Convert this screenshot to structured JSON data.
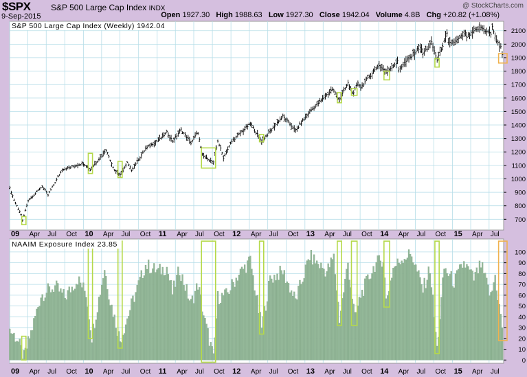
{
  "header": {
    "symbol": "$SPX",
    "name": "S&P 500 Large Cap Index",
    "exchange": "INDX",
    "date": "9-Sep-2015",
    "watermark": "@ StockCharts.com",
    "open_label": "Open",
    "open": "1927.30",
    "high_label": "High",
    "high": "1988.63",
    "low_label": "Low",
    "low": "1927.30",
    "close_label": "Close",
    "close": "1942.04",
    "volume_label": "Volume",
    "volume": "4.8B",
    "chg_label": "Chg",
    "chg": "+20.82 (+1.08%)"
  },
  "colors": {
    "frame": "#d5bfdf",
    "panel_bg": "#ffffff",
    "grid": "#b6dde8",
    "price": "#000000",
    "histogram": "#94b899",
    "histogram_edge": "#6f9574",
    "green_box": "#b5d94a",
    "orange_box": "#f0b24f"
  },
  "chart_data": [
    {
      "type": "line",
      "title": "S&P 500 Large Cap Index (Weekly) 1942.04",
      "xlabel": "",
      "ylabel": "",
      "ylim": [
        620,
        2170
      ],
      "yticks": [
        700,
        800,
        900,
        1000,
        1100,
        1200,
        1300,
        1400,
        1500,
        1600,
        1700,
        1800,
        1900,
        2000,
        2100
      ],
      "grid": true,
      "x_tick_labels": [
        "09",
        "Apr",
        "Jul",
        "Oct",
        "10",
        "Apr",
        "Jul",
        "Oct",
        "11",
        "Apr",
        "Jul",
        "Oct",
        "12",
        "Apr",
        "Jul",
        "Oct",
        "13",
        "Apr",
        "Jul",
        "Oct",
        "14",
        "Apr",
        "Jul",
        "Oct",
        "15",
        "Apr",
        "Jul"
      ],
      "bold_x_labels": [
        "09",
        "10",
        "11",
        "12",
        "13",
        "14",
        "15"
      ],
      "x_start": "2009-01-01",
      "x_end": "2015-09-11",
      "series": [
        {
          "name": "",
          "keypoints": [
            [
              "2009-01-02",
              930
            ],
            [
              "2009-01-23",
              840
            ],
            [
              "2009-02-27",
              735
            ],
            [
              "2009-03-06",
              690
            ],
            [
              "2009-04-03",
              840
            ],
            [
              "2009-06-12",
              945
            ],
            [
              "2009-07-10",
              880
            ],
            [
              "2009-09-18",
              1070
            ],
            [
              "2009-12-31",
              1115
            ],
            [
              "2010-02-05",
              1070
            ],
            [
              "2010-04-23",
              1215
            ],
            [
              "2010-06-04",
              1065
            ],
            [
              "2010-07-02",
              1025
            ],
            [
              "2010-08-06",
              1120
            ],
            [
              "2010-08-27",
              1065
            ],
            [
              "2010-11-05",
              1225
            ],
            [
              "2011-01-14",
              1295
            ],
            [
              "2011-02-18",
              1345
            ],
            [
              "2011-03-18",
              1280
            ],
            [
              "2011-04-29",
              1365
            ],
            [
              "2011-06-17",
              1270
            ],
            [
              "2011-07-22",
              1345
            ],
            [
              "2011-08-12",
              1175
            ],
            [
              "2011-10-07",
              1120
            ],
            [
              "2011-10-28",
              1285
            ],
            [
              "2011-11-25",
              1160
            ],
            [
              "2012-01-06",
              1280
            ],
            [
              "2012-04-06",
              1410
            ],
            [
              "2012-06-01",
              1280
            ],
            [
              "2012-09-14",
              1465
            ],
            [
              "2012-11-16",
              1360
            ],
            [
              "2013-01-25",
              1500
            ],
            [
              "2013-05-17",
              1665
            ],
            [
              "2013-06-21",
              1590
            ],
            [
              "2013-08-02",
              1710
            ],
            [
              "2013-08-30",
              1630
            ],
            [
              "2013-09-20",
              1715
            ],
            [
              "2013-10-04",
              1680
            ],
            [
              "2013-12-31",
              1845
            ],
            [
              "2014-02-07",
              1795
            ],
            [
              "2014-04-04",
              1870
            ],
            [
              "2014-04-11",
              1815
            ],
            [
              "2014-07-25",
              1980
            ],
            [
              "2014-08-08",
              1930
            ],
            [
              "2014-09-19",
              2010
            ],
            [
              "2014-10-17",
              1885
            ],
            [
              "2014-12-05",
              2075
            ],
            [
              "2014-12-12",
              2005
            ],
            [
              "2015-01-16",
              2020
            ],
            [
              "2015-03-06",
              2080
            ],
            [
              "2015-03-13",
              2055
            ],
            [
              "2015-05-22",
              2125
            ],
            [
              "2015-07-10",
              2075
            ],
            [
              "2015-07-17",
              2125
            ],
            [
              "2015-08-21",
              1975
            ],
            [
              "2015-08-28",
              1990
            ],
            [
              "2015-09-04",
              1925
            ],
            [
              "2015-09-09",
              1942
            ]
          ]
        }
      ],
      "annotation_boxes": [
        {
          "color": "green",
          "from": "2009-03-02",
          "to": "2009-03-23",
          "low": 660,
          "high": 720
        },
        {
          "color": "green",
          "from": "2010-01-25",
          "to": "2010-02-15",
          "low": 1040,
          "high": 1190
        },
        {
          "color": "green",
          "from": "2010-06-21",
          "to": "2010-07-12",
          "low": 1010,
          "high": 1130
        },
        {
          "color": "green",
          "from": "2011-08-08",
          "to": "2011-10-17",
          "low": 1080,
          "high": 1230
        },
        {
          "color": "green",
          "from": "2012-05-21",
          "to": "2012-06-11",
          "low": 1275,
          "high": 1330
        },
        {
          "color": "green",
          "from": "2013-06-10",
          "to": "2013-07-01",
          "low": 1565,
          "high": 1640
        },
        {
          "color": "green",
          "from": "2013-08-19",
          "to": "2013-09-16",
          "low": 1620,
          "high": 1670
        },
        {
          "color": "green",
          "from": "2014-01-27",
          "to": "2014-02-24",
          "low": 1735,
          "high": 1800
        },
        {
          "color": "green",
          "from": "2014-10-06",
          "to": "2014-10-27",
          "low": 1830,
          "high": 1895
        },
        {
          "color": "orange",
          "from": "2015-08-17",
          "to": "2015-09-28",
          "low": 1860,
          "high": 1930
        }
      ]
    },
    {
      "type": "bar",
      "title": "NAAIM Exposure Index 23.85",
      "xlabel": "",
      "ylabel": "",
      "ylim": [
        -3,
        112
      ],
      "yticks": [
        0,
        10,
        20,
        30,
        40,
        50,
        60,
        70,
        80,
        90,
        100
      ],
      "grid": true,
      "series": [
        {
          "name": "",
          "keypoints": [
            [
              "2009-01-02",
              28
            ],
            [
              "2009-02-06",
              20
            ],
            [
              "2009-03-13",
              2
            ],
            [
              "2009-04-24",
              30
            ],
            [
              "2009-06-05",
              60
            ],
            [
              "2009-08-14",
              68
            ],
            [
              "2009-10-02",
              58
            ],
            [
              "2009-12-04",
              75
            ],
            [
              "2010-01-15",
              62
            ],
            [
              "2010-02-12",
              22
            ],
            [
              "2010-04-16",
              85
            ],
            [
              "2010-05-14",
              55
            ],
            [
              "2010-07-02",
              18
            ],
            [
              "2010-09-03",
              55
            ],
            [
              "2010-11-05",
              88
            ],
            [
              "2011-01-07",
              82
            ],
            [
              "2011-02-18",
              86
            ],
            [
              "2011-03-18",
              62
            ],
            [
              "2011-04-22",
              84
            ],
            [
              "2011-06-17",
              52
            ],
            [
              "2011-07-22",
              70
            ],
            [
              "2011-08-26",
              35
            ],
            [
              "2011-09-30",
              8
            ],
            [
              "2011-10-07",
              0
            ],
            [
              "2011-10-28",
              58
            ],
            [
              "2011-12-09",
              60
            ],
            [
              "2012-02-03",
              78
            ],
            [
              "2012-04-06",
              92
            ],
            [
              "2012-06-01",
              30
            ],
            [
              "2012-07-13",
              75
            ],
            [
              "2012-09-14",
              82
            ],
            [
              "2012-11-16",
              55
            ],
            [
              "2013-01-25",
              96
            ],
            [
              "2013-04-19",
              82
            ],
            [
              "2013-05-24",
              95
            ],
            [
              "2013-06-21",
              38
            ],
            [
              "2013-08-02",
              90
            ],
            [
              "2013-09-06",
              38
            ],
            [
              "2013-10-04",
              60
            ],
            [
              "2013-12-13",
              88
            ],
            [
              "2014-01-24",
              94
            ],
            [
              "2014-02-07",
              55
            ],
            [
              "2014-03-14",
              85
            ],
            [
              "2014-05-02",
              95
            ],
            [
              "2014-06-13",
              98
            ],
            [
              "2014-08-08",
              65
            ],
            [
              "2014-09-12",
              85
            ],
            [
              "2014-10-17",
              10
            ],
            [
              "2014-11-21",
              85
            ],
            [
              "2015-01-09",
              72
            ],
            [
              "2015-02-27",
              90
            ],
            [
              "2015-04-17",
              75
            ],
            [
              "2015-05-22",
              88
            ],
            [
              "2015-07-10",
              58
            ],
            [
              "2015-07-31",
              78
            ],
            [
              "2015-08-28",
              40
            ],
            [
              "2015-09-09",
              24
            ]
          ]
        }
      ],
      "annotation_boxes": [
        {
          "color": "green",
          "from": "2009-03-02",
          "to": "2009-03-23",
          "low": 0,
          "high": 22
        },
        {
          "color": "green",
          "from": "2010-01-25",
          "to": "2010-02-15",
          "low": 20,
          "high": 110
        },
        {
          "color": "green",
          "from": "2010-06-21",
          "to": "2010-07-12",
          "low": 11,
          "high": 110
        },
        {
          "color": "green",
          "from": "2011-08-08",
          "to": "2011-10-17",
          "low": -2,
          "high": 110
        },
        {
          "color": "green",
          "from": "2012-05-21",
          "to": "2012-06-11",
          "low": 24,
          "high": 110
        },
        {
          "color": "green",
          "from": "2013-06-10",
          "to": "2013-07-01",
          "low": 32,
          "high": 110
        },
        {
          "color": "green",
          "from": "2013-08-19",
          "to": "2013-09-16",
          "low": 32,
          "high": 110
        },
        {
          "color": "green",
          "from": "2014-01-27",
          "to": "2014-02-24",
          "low": 49,
          "high": 110
        },
        {
          "color": "green",
          "from": "2014-10-06",
          "to": "2014-10-27",
          "low": 6,
          "high": 110
        },
        {
          "color": "orange",
          "from": "2015-08-17",
          "to": "2015-09-28",
          "low": 18,
          "high": 110
        }
      ]
    }
  ]
}
